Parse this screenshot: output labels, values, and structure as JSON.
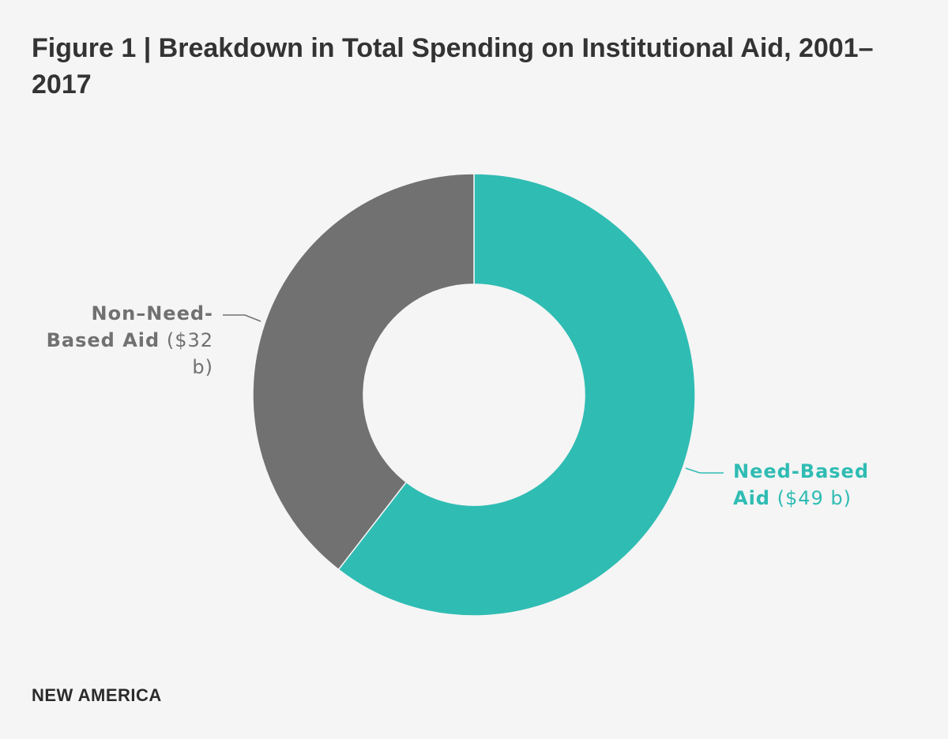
{
  "title": "Figure 1 | Breakdown in Total Spending on Institutional Aid, 2001–2017",
  "footer": "NEW AMERICA",
  "chart_data": {
    "type": "pie",
    "donut": true,
    "title": "Figure 1 | Breakdown in Total Spending on Institutional Aid, 2001–2017",
    "unit": "billion USD",
    "slices": [
      {
        "name": "Need-Based Aid",
        "value": 49,
        "name_line1": "Need-Based",
        "name_line2": "Aid",
        "value_label": "($49 b)",
        "color": "#2fbcb3"
      },
      {
        "name": "Non–Need-Based Aid",
        "value": 32,
        "name_line1": "Non–Need-",
        "name_line2": "Based Aid",
        "value_label_part1": "($32",
        "value_label_part2": "b)",
        "color": "#717171"
      }
    ]
  }
}
